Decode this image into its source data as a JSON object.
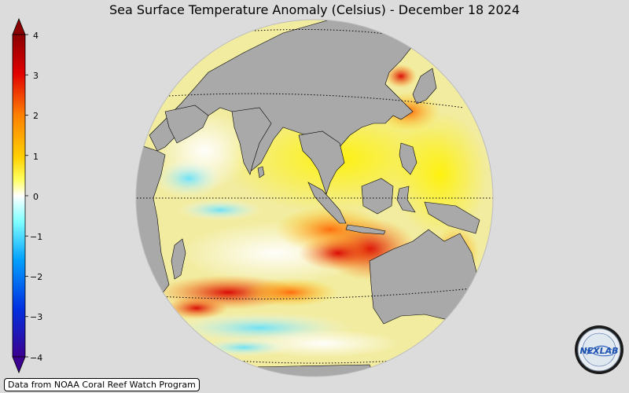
{
  "title": "Sea Surface Temperature Anomaly (Celsius) - December 18 2024",
  "colorbar": {
    "ticks": [
      "4",
      "3",
      "2",
      "1",
      "0",
      "−1",
      "−2",
      "−3",
      "−4"
    ],
    "min": -4,
    "max": 4,
    "gradient": [
      "#8b0000",
      "#e00000",
      "#ff7f00",
      "#ffc000",
      "#ffff00",
      "#ffffff",
      "#80ffff",
      "#00bfff",
      "#0040ff",
      "#4000a0"
    ]
  },
  "map": {
    "projection": "orthographic",
    "land_color": "#a9a9a9",
    "ocean_background": "#f0e9a0"
  },
  "source": "Data from NOAA Coral Reef Watch Program",
  "logo": {
    "text": "NEXLAB",
    "name": "nexlab-logo"
  }
}
